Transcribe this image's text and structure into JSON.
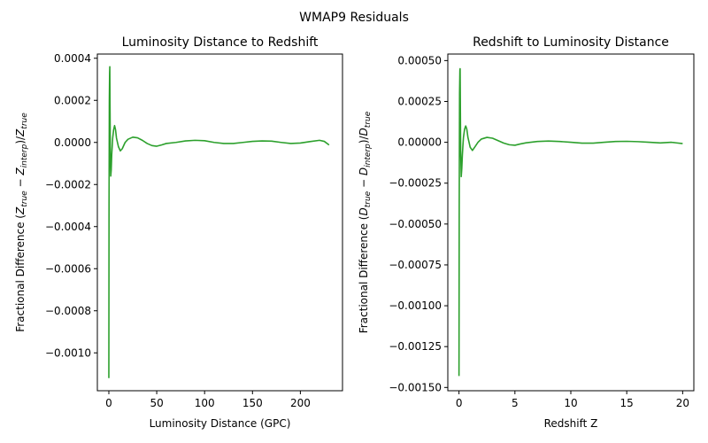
{
  "suptitle": "WMAP9 Residuals",
  "series_color": "#2ca02c",
  "chart_data": [
    {
      "type": "line",
      "title": "Luminosity Distance to Redshift",
      "xlabel": "Luminosity Distance (GPC)",
      "ylabel": {
        "base": "Fractional Difference ",
        "open": "(",
        "z1": "Z",
        "s1": "true",
        "minus": " − ",
        "z2": "Z",
        "s2": "interp",
        "close": ")/",
        "z3": "Z",
        "s3": "true"
      },
      "xlim": [
        -12,
        244
      ],
      "ylim": [
        -0.00118,
        0.00042
      ],
      "xticks": [
        0,
        50,
        100,
        150,
        200
      ],
      "xtick_labels": [
        "0",
        "50",
        "100",
        "150",
        "200"
      ],
      "yticks": [
        -0.001,
        -0.0008,
        -0.0006,
        -0.0004,
        -0.0002,
        0.0,
        0.0002,
        0.0004
      ],
      "ytick_labels": [
        "−0.0010",
        "−0.0008",
        "−0.0006",
        "−0.0004",
        "−0.0002",
        "0.0000",
        "0.0002",
        "0.0004"
      ],
      "grid": false,
      "x": [
        0.0,
        0.2,
        0.5,
        0.8,
        1.0,
        1.2,
        1.6,
        2.0,
        2.5,
        3.0,
        3.5,
        4.0,
        5.0,
        6.0,
        7.0,
        8.0,
        10.0,
        12.0,
        14.0,
        17.0,
        20.0,
        25.0,
        30.0,
        35.0,
        40.0,
        45.0,
        50.0,
        55.0,
        60.0,
        70.0,
        80.0,
        90.0,
        100.0,
        110.0,
        120.0,
        130.0,
        140.0,
        150.0,
        160.0,
        170.0,
        180.0,
        190.0,
        200.0,
        210.0,
        220.0,
        225.0,
        230.0
      ],
      "y": [
        -0.00112,
        -0.0003,
        0.0002,
        0.00033,
        0.00036,
        0.0002,
        -8e-05,
        -0.00016,
        -0.00013,
        -6e-05,
        -2e-05,
        2e-05,
        6e-05,
        8e-05,
        6e-05,
        2e-05,
        -2e-05,
        -4e-05,
        -3e-05,
        0.0,
        1.5e-05,
        2.5e-05,
        2.2e-05,
        1e-05,
        -5e-06,
        -1.5e-05,
        -1.8e-05,
        -1.2e-05,
        -5e-06,
        0.0,
        7e-06,
        1e-05,
        8e-06,
        0.0,
        -5e-06,
        -5e-06,
        0.0,
        5e-06,
        7e-06,
        6e-06,
        0.0,
        -5e-06,
        -3e-06,
        4e-06,
        1e-05,
        5e-06,
        -1.2e-05
      ]
    },
    {
      "type": "line",
      "title": "Redshift to Luminosity Distance",
      "xlabel": "Redshift Z",
      "ylabel": {
        "base": "Fractional Difference ",
        "open": "(",
        "z1": "D",
        "s1": "true",
        "minus": " − ",
        "z2": "D",
        "s2": "interp",
        "close": ")/",
        "z3": "D",
        "s3": "true"
      },
      "xlim": [
        -1.0,
        21.0
      ],
      "ylim": [
        -0.00152,
        0.00054
      ],
      "xticks": [
        0,
        5,
        10,
        15,
        20
      ],
      "xtick_labels": [
        "0",
        "5",
        "10",
        "15",
        "20"
      ],
      "yticks": [
        -0.0015,
        -0.00125,
        -0.001,
        -0.00075,
        -0.0005,
        -0.00025,
        0.0,
        0.00025,
        0.0005
      ],
      "ytick_labels": [
        "−0.00150",
        "−0.00125",
        "−0.00100",
        "−0.00075",
        "−0.00050",
        "−0.00025",
        "0.00000",
        "0.00025",
        "0.00050"
      ],
      "grid": false,
      "x": [
        0.0,
        0.02,
        0.05,
        0.08,
        0.1,
        0.12,
        0.15,
        0.2,
        0.25,
        0.3,
        0.35,
        0.4,
        0.5,
        0.6,
        0.7,
        0.8,
        1.0,
        1.2,
        1.4,
        1.7,
        2.0,
        2.5,
        3.0,
        3.5,
        4.0,
        4.5,
        5.0,
        5.5,
        6.0,
        7.0,
        8.0,
        9.0,
        10.0,
        11.0,
        12.0,
        13.0,
        14.0,
        15.0,
        16.0,
        17.0,
        18.0,
        19.0,
        20.0
      ],
      "y": [
        -0.00143,
        -0.0004,
        0.0003,
        0.00044,
        0.00045,
        0.00025,
        -5e-05,
        -0.00021,
        -0.00016,
        -8e-05,
        -2e-05,
        3e-05,
        8e-05,
        0.0001,
        8e-05,
        3e-05,
        -3e-05,
        -5e-05,
        -3e-05,
        0.0,
        2e-05,
        3e-05,
        2.5e-05,
        1e-05,
        -5e-06,
        -1.5e-05,
        -1.8e-05,
        -1e-05,
        -3e-06,
        5e-06,
        8e-06,
        5e-06,
        0.0,
        -5e-06,
        -5e-06,
        0.0,
        5e-06,
        6e-06,
        4e-06,
        0.0,
        -4e-06,
        0.0,
        -8e-06
      ]
    }
  ]
}
